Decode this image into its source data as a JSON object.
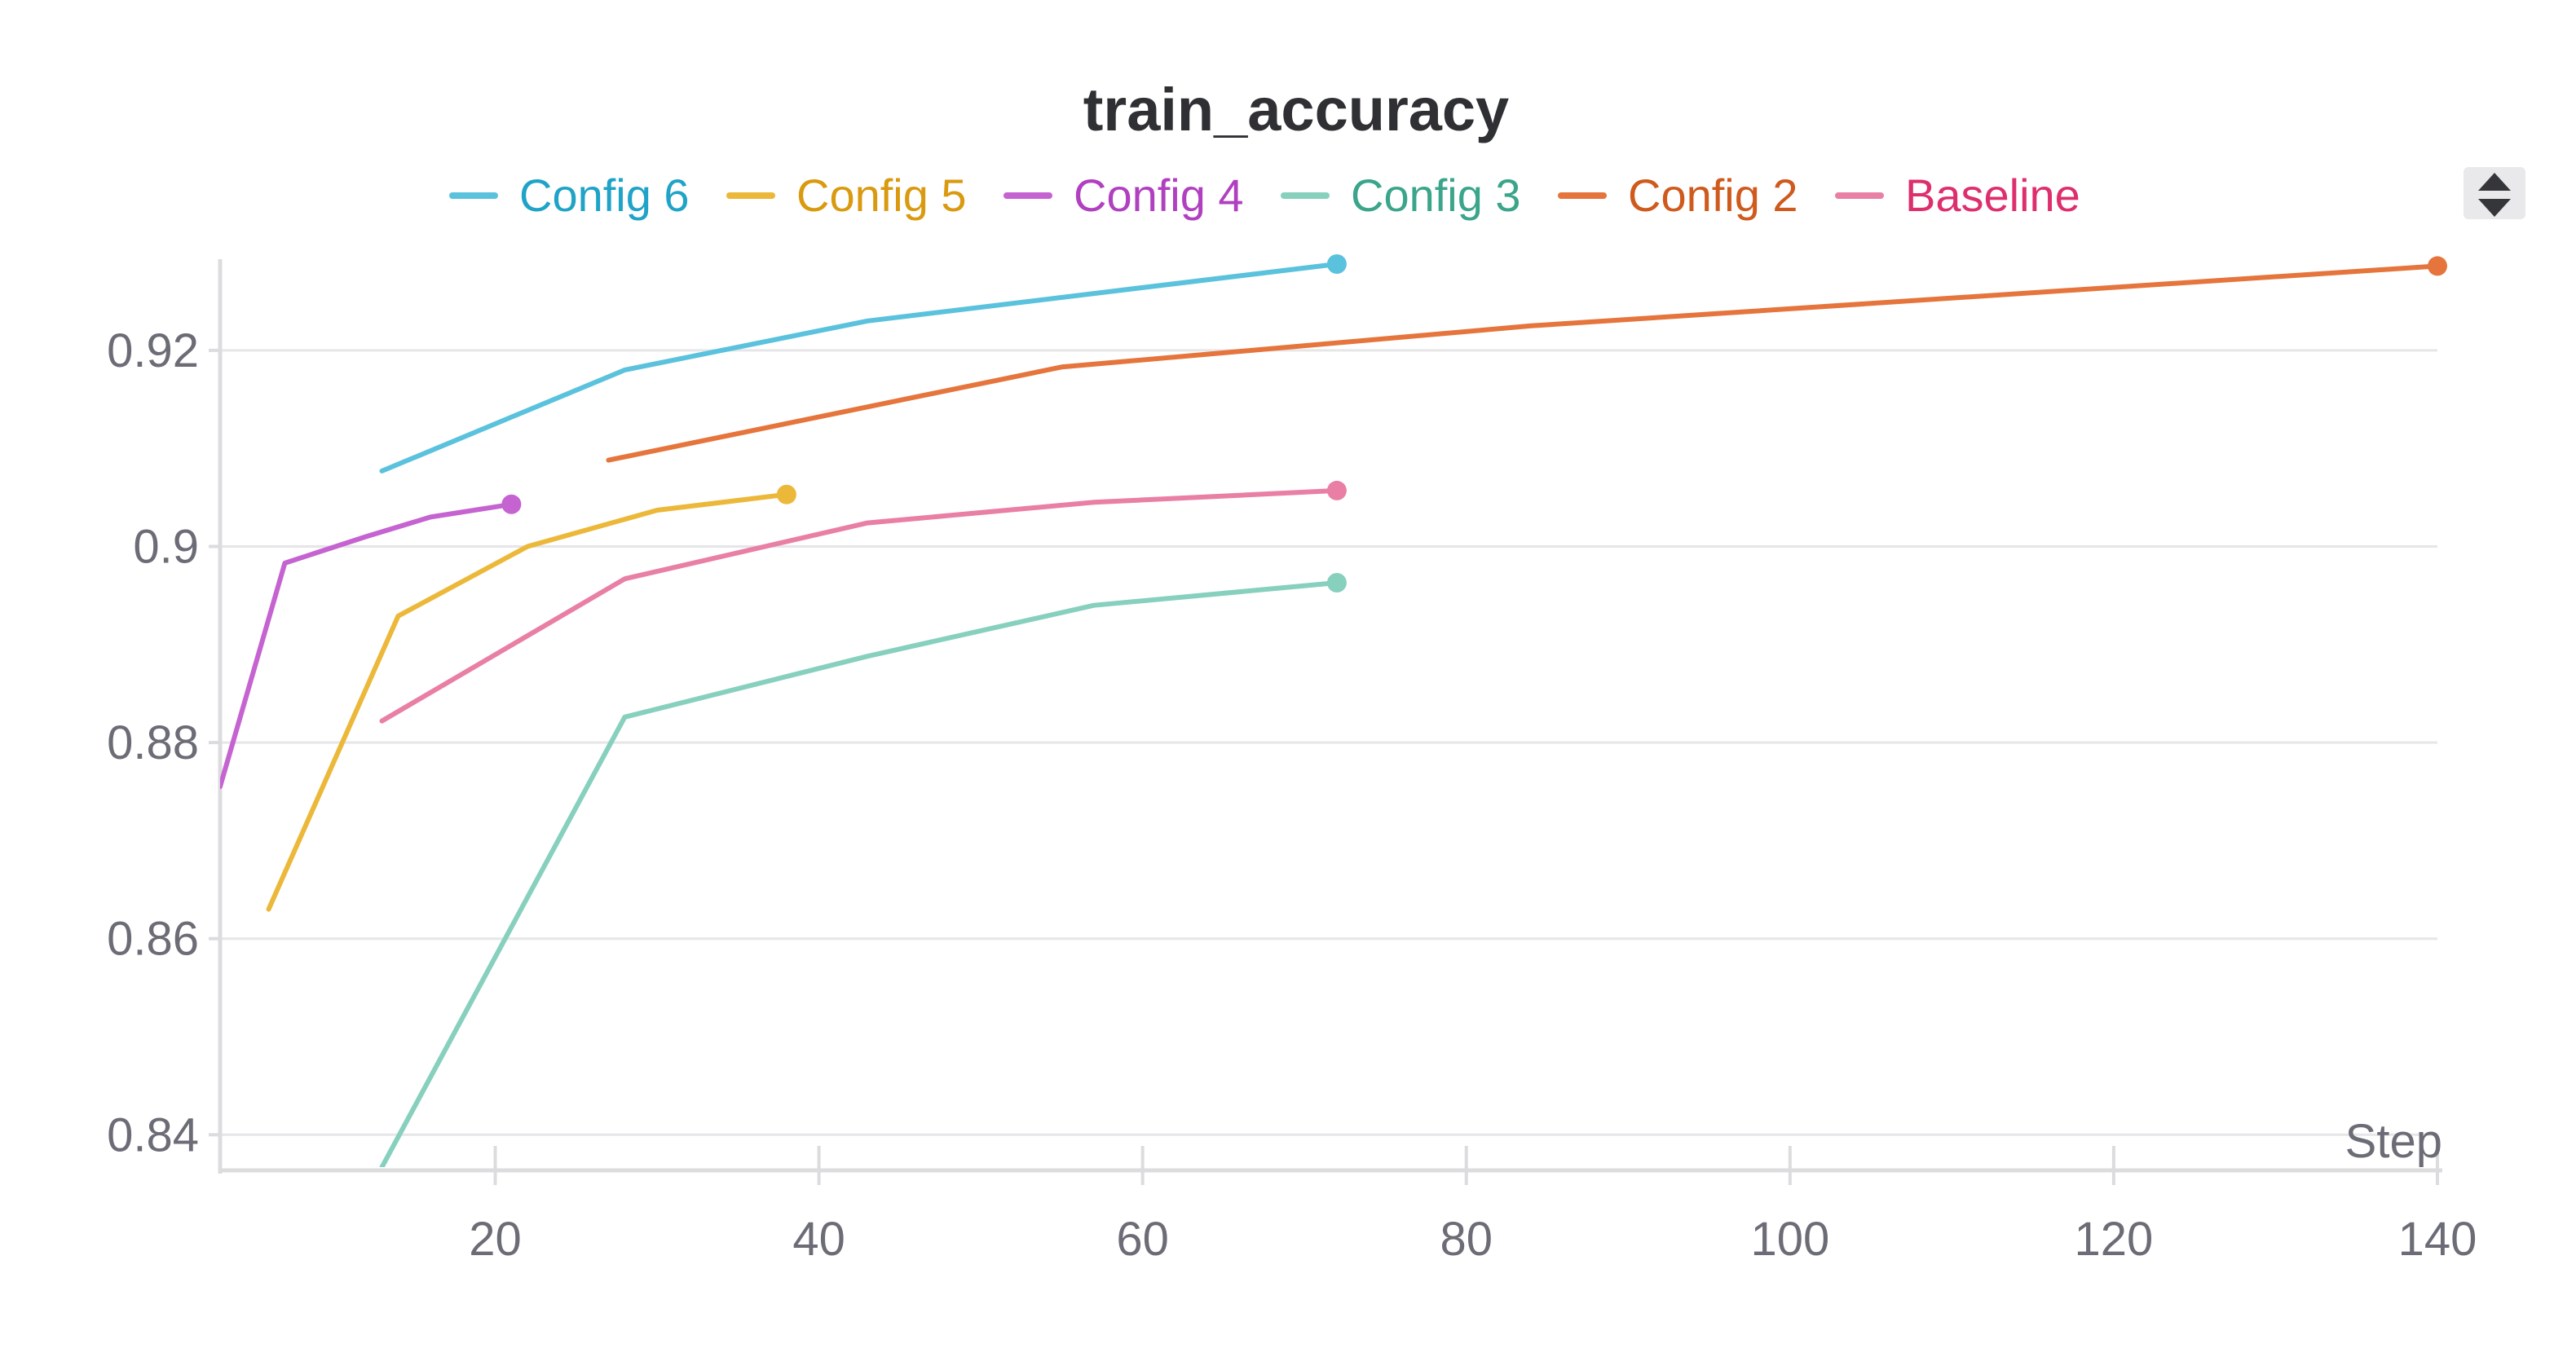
{
  "chart_data": {
    "type": "line",
    "title": "train_accuracy",
    "xlabel": "Step",
    "ylabel": "",
    "xlim": [
      3,
      140
    ],
    "ylim": [
      0.8367,
      0.9293
    ],
    "x_ticks": [
      20,
      40,
      60,
      80,
      100,
      120,
      140
    ],
    "y_ticks": [
      0.84,
      0.86,
      0.88,
      0.9,
      0.92
    ],
    "x_tick_labels": [
      "20",
      "40",
      "60",
      "80",
      "100",
      "120",
      "140"
    ],
    "y_tick_labels": [
      "0.84",
      "0.86",
      "0.88",
      "0.9",
      "0.92"
    ],
    "grid": "horizontal",
    "legend_position": "top",
    "series": [
      {
        "name": "Config 6",
        "color": "#5bc2dd",
        "label_color": "#1fa3c7",
        "x": [
          13,
          28,
          43,
          72
        ],
        "y": [
          0.9077,
          0.918,
          0.923,
          0.9288
        ]
      },
      {
        "name": "Config 5",
        "color": "#ecb83a",
        "label_color": "#d99a0f",
        "x": [
          6,
          14,
          22,
          30,
          38
        ],
        "y": [
          0.863,
          0.8929,
          0.9,
          0.9037,
          0.9053
        ]
      },
      {
        "name": "Config 4",
        "color": "#c563d1",
        "label_color": "#b040c0",
        "x": [
          3,
          7,
          12,
          16,
          21
        ],
        "y": [
          0.8755,
          0.8983,
          0.901,
          0.903,
          0.9043
        ]
      },
      {
        "name": "Config 3",
        "color": "#87d0be",
        "label_color": "#3aa58a",
        "x": [
          13,
          28,
          43,
          57,
          72
        ],
        "y": [
          0.8367,
          0.8826,
          0.8888,
          0.894,
          0.8963
        ]
      },
      {
        "name": "Config 2",
        "color": "#e5753c",
        "label_color": "#cf5a1c",
        "x": [
          27,
          55,
          84,
          140
        ],
        "y": [
          0.9088,
          0.9183,
          0.9225,
          0.9286
        ]
      },
      {
        "name": "Baseline",
        "color": "#e97fa4",
        "label_color": "#dd2f6e",
        "x": [
          13,
          28,
          43,
          57,
          72
        ],
        "y": [
          0.8822,
          0.8967,
          0.9024,
          0.9045,
          0.9057
        ]
      }
    ]
  },
  "icons": {
    "legend_scroll": "chevron-up-down-icon"
  }
}
